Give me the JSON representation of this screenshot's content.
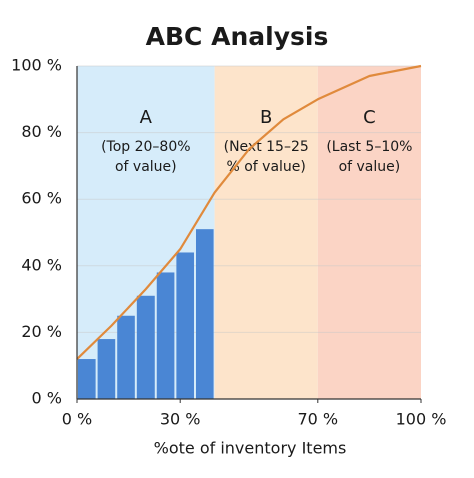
{
  "chart_data": {
    "type": "histogram",
    "title": "ABC Analysis",
    "xlabel": "%ote of inventory Items",
    "bins": [
      0,
      5.7,
      11.4,
      17.1,
      22.9,
      28.6,
      34.3,
      40
    ],
    "values": [
      12,
      18,
      25,
      31,
      38,
      44,
      51
    ],
    "color": "#4a86d4",
    "curve": {
      "x": [
        0,
        10,
        20,
        30,
        40,
        50,
        60,
        70,
        85,
        100
      ],
      "values": [
        12,
        22,
        33,
        45,
        62,
        75,
        84,
        90,
        97,
        100
      ],
      "color": "#e08a3c"
    },
    "regions": [
      {
        "name": "A",
        "lines": [
          "(Top 20–80%",
          "of value)"
        ],
        "xlim": [
          0,
          40
        ],
        "color": "#d6ecfa"
      },
      {
        "name": "B",
        "lines": [
          "(Next 15–25",
          "% of value)"
        ],
        "xlim": [
          40,
          70
        ],
        "color": "#fde4cb"
      },
      {
        "name": "C",
        "lines": [
          "(Last 5–10%",
          "of value)"
        ],
        "xlim": [
          70,
          100
        ],
        "color": "#fbd4c5"
      }
    ],
    "xlim": [
      0,
      100
    ],
    "ylim": [
      0,
      100
    ],
    "xticks": [
      {
        "value": 0,
        "label": "0 %"
      },
      {
        "value": 30,
        "label": "30 %"
      },
      {
        "value": 70,
        "label": "70 %"
      },
      {
        "value": 100,
        "label": "100 %"
      }
    ],
    "yticks": [
      {
        "value": 0,
        "label": "0 %"
      },
      {
        "value": 20,
        "label": "20 %"
      },
      {
        "value": 40,
        "label": "40 %"
      },
      {
        "value": 60,
        "label": "60 %"
      },
      {
        "value": 80,
        "label": "80 %"
      },
      {
        "value": 100,
        "label": "100 %"
      }
    ],
    "grid": true
  }
}
